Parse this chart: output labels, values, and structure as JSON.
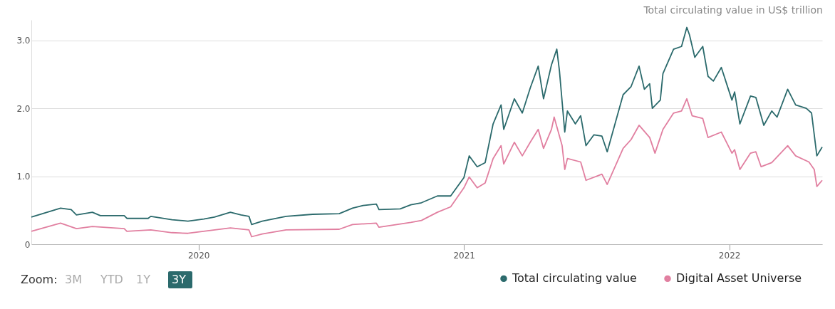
{
  "chart_data": {
    "type": "line",
    "ylabel": "Total circulating value in US$ trillion",
    "xlim": [
      2019.37,
      2022.35
    ],
    "xticks": [
      2020,
      2021,
      2022
    ],
    "ylim": [
      0,
      3.3
    ],
    "yticks": [
      0,
      {
        "value": 1,
        "label": "1.0"
      },
      {
        "value": 2,
        "label": "2.0"
      },
      {
        "value": 3,
        "label": "3.0"
      }
    ],
    "grid": "y",
    "legend": "bottom",
    "line_style": "solid",
    "annotations": [
      "Zoom:",
      "3M",
      "YTD",
      "1Y",
      "3Y"
    ],
    "series": [
      {
        "name": "Total circulating value",
        "color": "#2b6a6c",
        "x": [
          2019.37,
          2019.48,
          2019.52,
          2019.54,
          2019.6,
          2019.63,
          2019.72,
          2019.73,
          2019.81,
          2019.82,
          2019.9,
          2019.96,
          2020.02,
          2020.06,
          2020.12,
          2020.16,
          2020.19,
          2020.2,
          2020.24,
          2020.33,
          2020.43,
          2020.53,
          2020.58,
          2020.62,
          2020.67,
          2020.68,
          2020.76,
          2020.8,
          2020.84,
          2020.9,
          2020.95,
          2021.0,
          2021.02,
          2021.05,
          2021.08,
          2021.11,
          2021.14,
          2021.15,
          2021.19,
          2021.22,
          2021.25,
          2021.28,
          2021.3,
          2021.33,
          2021.35,
          2021.36,
          2021.38,
          2021.39,
          2021.42,
          2021.44,
          2021.46,
          2021.49,
          2021.52,
          2021.54,
          2021.6,
          2021.63,
          2021.66,
          2021.68,
          2021.7,
          2021.71,
          2021.74,
          2021.75,
          2021.79,
          2021.82,
          2021.84,
          2021.85,
          2021.87,
          2021.9,
          2021.92,
          2021.94,
          2021.97,
          2022.01,
          2022.02,
          2022.04,
          2022.08,
          2022.1,
          2022.13,
          2022.16,
          2022.18,
          2022.22,
          2022.25,
          2022.29,
          2022.31,
          2022.33,
          2022.35
        ],
        "values": [
          0.4,
          0.53,
          0.51,
          0.43,
          0.47,
          0.42,
          0.42,
          0.38,
          0.38,
          0.41,
          0.36,
          0.34,
          0.37,
          0.4,
          0.47,
          0.43,
          0.41,
          0.29,
          0.34,
          0.41,
          0.44,
          0.45,
          0.53,
          0.57,
          0.59,
          0.51,
          0.52,
          0.58,
          0.61,
          0.71,
          0.71,
          0.98,
          1.3,
          1.14,
          1.2,
          1.77,
          2.05,
          1.69,
          2.14,
          1.93,
          2.3,
          2.62,
          2.14,
          2.64,
          2.87,
          2.55,
          1.65,
          1.96,
          1.77,
          1.89,
          1.45,
          1.61,
          1.59,
          1.36,
          2.2,
          2.32,
          2.62,
          2.28,
          2.36,
          2.0,
          2.12,
          2.51,
          2.87,
          2.91,
          3.19,
          3.08,
          2.75,
          2.91,
          2.47,
          2.4,
          2.6,
          2.12,
          2.24,
          1.77,
          2.18,
          2.16,
          1.75,
          1.96,
          1.87,
          2.28,
          2.05,
          2.0,
          1.93,
          1.3,
          1.43
        ]
      },
      {
        "name": "Digital Asset Universe",
        "color": "#e17fa0",
        "x": [
          2019.37,
          2019.48,
          2019.54,
          2019.6,
          2019.72,
          2019.73,
          2019.82,
          2019.9,
          2019.96,
          2020.04,
          2020.12,
          2020.19,
          2020.2,
          2020.24,
          2020.33,
          2020.53,
          2020.58,
          2020.67,
          2020.68,
          2020.8,
          2020.84,
          2020.9,
          2020.95,
          2021.0,
          2021.02,
          2021.05,
          2021.08,
          2021.11,
          2021.14,
          2021.15,
          2021.19,
          2021.22,
          2021.25,
          2021.28,
          2021.3,
          2021.33,
          2021.34,
          2021.37,
          2021.38,
          2021.39,
          2021.44,
          2021.46,
          2021.52,
          2021.54,
          2021.6,
          2021.63,
          2021.66,
          2021.7,
          2021.72,
          2021.75,
          2021.79,
          2021.82,
          2021.84,
          2021.86,
          2021.9,
          2021.92,
          2021.97,
          2022.01,
          2022.02,
          2022.04,
          2022.08,
          2022.1,
          2022.12,
          2022.16,
          2022.22,
          2022.25,
          2022.3,
          2022.32,
          2022.33,
          2022.35
        ],
        "values": [
          0.19,
          0.31,
          0.23,
          0.26,
          0.23,
          0.19,
          0.21,
          0.17,
          0.16,
          0.2,
          0.24,
          0.21,
          0.11,
          0.15,
          0.21,
          0.22,
          0.29,
          0.31,
          0.25,
          0.32,
          0.35,
          0.47,
          0.55,
          0.83,
          0.99,
          0.83,
          0.9,
          1.26,
          1.45,
          1.18,
          1.5,
          1.3,
          1.5,
          1.69,
          1.41,
          1.69,
          1.87,
          1.45,
          1.1,
          1.26,
          1.21,
          0.94,
          1.03,
          0.88,
          1.41,
          1.54,
          1.75,
          1.57,
          1.34,
          1.69,
          1.93,
          1.96,
          2.14,
          1.89,
          1.85,
          1.57,
          1.65,
          1.34,
          1.39,
          1.1,
          1.34,
          1.36,
          1.14,
          1.2,
          1.45,
          1.3,
          1.21,
          1.1,
          0.85,
          0.94
        ]
      }
    ]
  }
}
